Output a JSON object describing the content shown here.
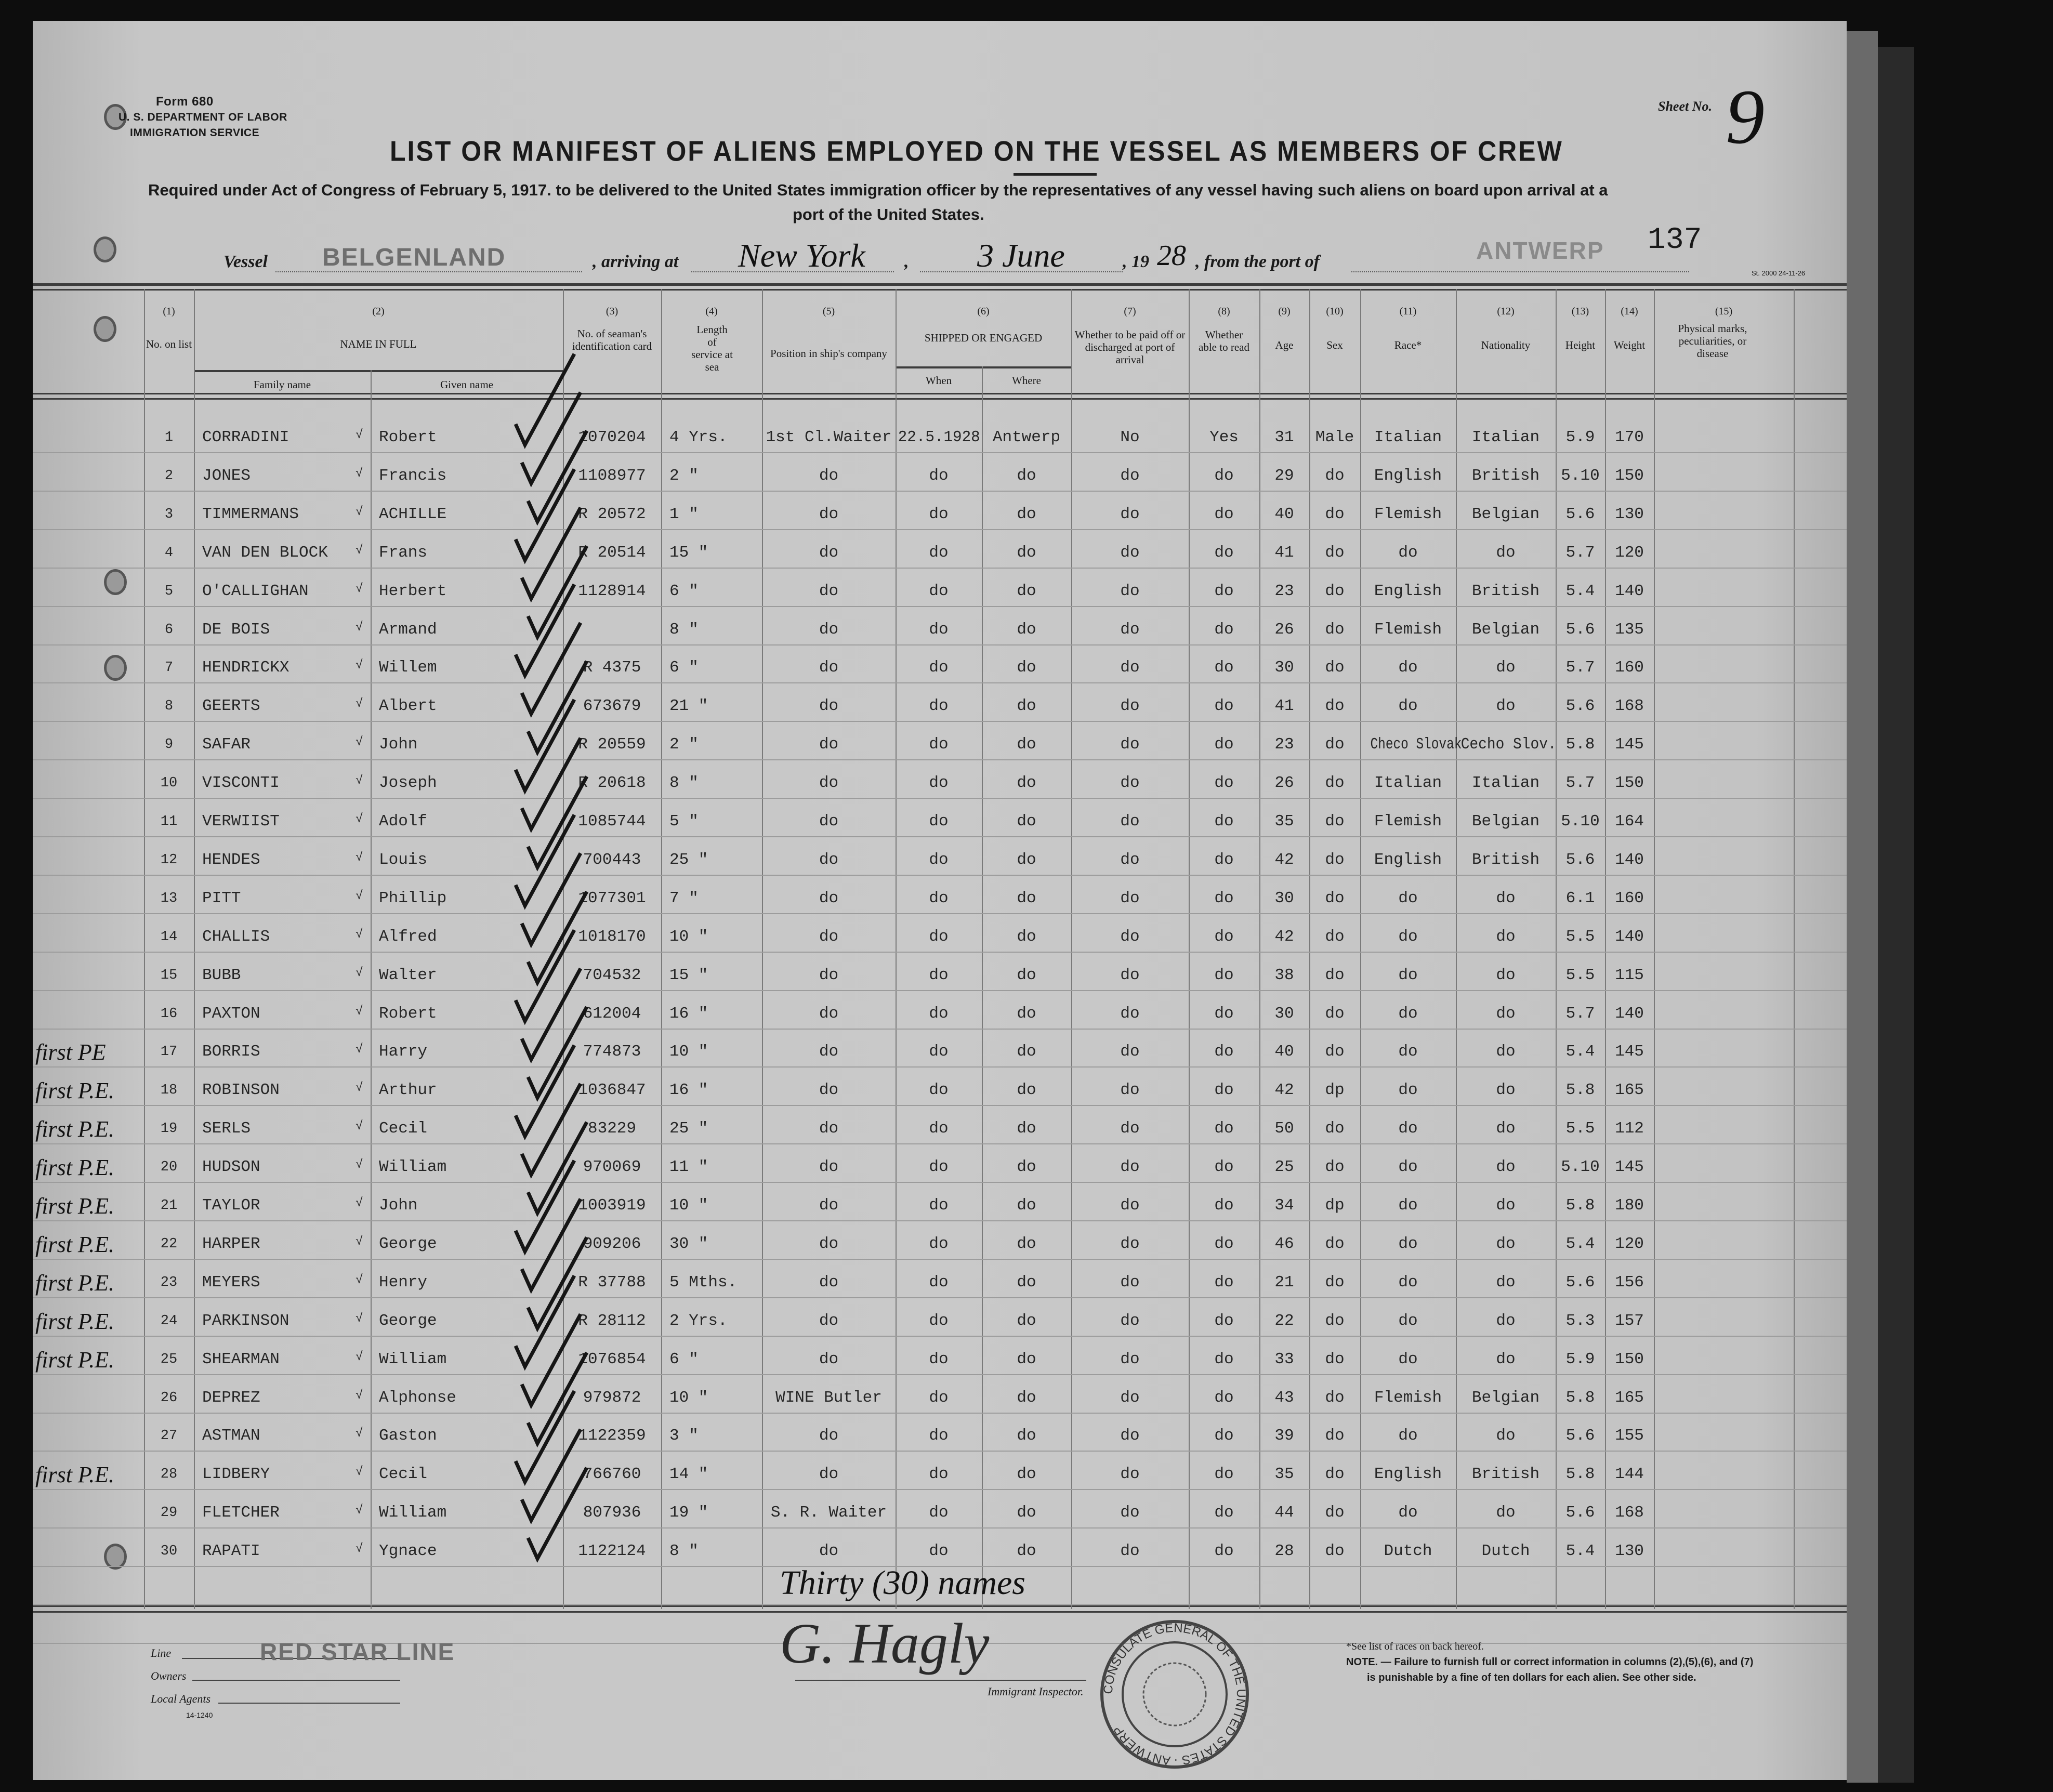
{
  "form": {
    "form_no": "Form 680",
    "department": "U. S. DEPARTMENT OF LABOR",
    "service": "IMMIGRATION SERVICE",
    "sheet_label": "Sheet No.",
    "sheet_no": "9",
    "title": "LIST OR MANIFEST OF ALIENS EMPLOYED ON THE VESSEL AS MEMBERS OF CREW",
    "subtitle_1": "Required under Act of Congress of February 5, 1917. to be delivered to the United States immigration officer by the representatives of any vessel having such aliens on board upon arrival at a",
    "subtitle_2": "port of the United States.",
    "vessel_label": "Vessel",
    "vessel": "BELGENLAND",
    "arriving_label": ", arriving at",
    "arriving_port": "New York",
    "date": "3 June",
    "year_prefix": ", 19",
    "year_suffix": "28",
    "from_label": ", from the port of",
    "from_port": "ANTWERP",
    "page_number": "137",
    "print_code": "St. 2000 24-11-26"
  },
  "columns": {
    "c1_no": "(1)",
    "c1": "No. on list",
    "c2_no": "(2)",
    "c2": "NAME IN FULL",
    "c2a": "Family name",
    "c2b": "Given name",
    "c3_no": "(3)",
    "c3": "No. of seaman's identification card",
    "c4_no": "(4)",
    "c4": "Length of service at sea",
    "c5_no": "(5)",
    "c5": "Position in ship's company",
    "c6_no": "(6)",
    "c6": "SHIPPED OR ENGAGED",
    "c6a": "When",
    "c6b": "Where",
    "c7_no": "(7)",
    "c7": "Whether to be paid off or discharged at port of arrival",
    "c8_no": "(8)",
    "c8": "Whether able to read",
    "c9_no": "(9)",
    "c9": "Age",
    "c10_no": "(10)",
    "c10": "Sex",
    "c11_no": "(11)",
    "c11": "Race*",
    "c12_no": "(12)",
    "c12": "Nationality",
    "c13_no": "(13)",
    "c13": "Height",
    "c14_no": "(14)",
    "c14": "Weight",
    "c15_no": "(15)",
    "c15": "Physical marks, peculiarities, or disease"
  },
  "rows": [
    {
      "no": "1",
      "family": "CORRADINI",
      "given": "Robert",
      "card": "1070204",
      "length": "4 Yrs.",
      "position": "1st Cl.Waiter",
      "when": "22.5.1928",
      "where": "Antwerp",
      "paid_off": "No",
      "read": "Yes",
      "age": "31",
      "sex": "Male",
      "race": "Italian",
      "nationality": "Italian",
      "height": "5.9",
      "weight": "170",
      "annotation": ""
    },
    {
      "no": "2",
      "family": "JONES",
      "given": "Francis",
      "card": "1108977",
      "length": "2 \"",
      "position": "do",
      "when": "do",
      "where": "do",
      "paid_off": "do",
      "read": "do",
      "age": "29",
      "sex": "do",
      "race": "English",
      "nationality": "British",
      "height": "5.10",
      "weight": "150",
      "annotation": ""
    },
    {
      "no": "3",
      "family": "TIMMERMANS",
      "given": "ACHILLE",
      "card": "R 20572",
      "length": "1 \"",
      "position": "do",
      "when": "do",
      "where": "do",
      "paid_off": "do",
      "read": "do",
      "age": "40",
      "sex": "do",
      "race": "Flemish",
      "nationality": "Belgian",
      "height": "5.6",
      "weight": "130",
      "annotation": ""
    },
    {
      "no": "4",
      "family": "VAN DEN BLOCK",
      "given": "Frans",
      "card": "R 20514",
      "length": "15 \"",
      "position": "do",
      "when": "do",
      "where": "do",
      "paid_off": "do",
      "read": "do",
      "age": "41",
      "sex": "do",
      "race": "do",
      "nationality": "do",
      "height": "5.7",
      "weight": "120",
      "annotation": ""
    },
    {
      "no": "5",
      "family": "O'CALLIGHAN",
      "given": "Herbert",
      "card": "1128914",
      "length": "6 \"",
      "position": "do",
      "when": "do",
      "where": "do",
      "paid_off": "do",
      "read": "do",
      "age": "23",
      "sex": "do",
      "race": "English",
      "nationality": "British",
      "height": "5.4",
      "weight": "140",
      "annotation": ""
    },
    {
      "no": "6",
      "family": "DE BOIS",
      "given": "Armand",
      "card": "",
      "length": "8 \"",
      "position": "do",
      "when": "do",
      "where": "do",
      "paid_off": "do",
      "read": "do",
      "age": "26",
      "sex": "do",
      "race": "Flemish",
      "nationality": "Belgian",
      "height": "5.6",
      "weight": "135",
      "annotation": ""
    },
    {
      "no": "7",
      "family": "HENDRICKX",
      "given": "Willem",
      "card": "R 4375",
      "length": "6 \"",
      "position": "do",
      "when": "do",
      "where": "do",
      "paid_off": "do",
      "read": "do",
      "age": "30",
      "sex": "do",
      "race": "do",
      "nationality": "do",
      "height": "5.7",
      "weight": "160",
      "annotation": ""
    },
    {
      "no": "8",
      "family": "GEERTS",
      "given": "Albert",
      "card": "673679",
      "length": "21 \"",
      "position": "do",
      "when": "do",
      "where": "do",
      "paid_off": "do",
      "read": "do",
      "age": "41",
      "sex": "do",
      "race": "do",
      "nationality": "do",
      "height": "5.6",
      "weight": "168",
      "annotation": ""
    },
    {
      "no": "9",
      "family": "SAFAR",
      "given": "John",
      "card": "R 20559",
      "length": "2 \"",
      "position": "do",
      "when": "do",
      "where": "do",
      "paid_off": "do",
      "read": "do",
      "age": "23",
      "sex": "do",
      "race": "Checo Slovak",
      "nationality": "Cecho Slov.",
      "height": "5.8",
      "weight": "145",
      "annotation": ""
    },
    {
      "no": "10",
      "family": "VISCONTI",
      "given": "Joseph",
      "card": "R 20618",
      "length": "8 \"",
      "position": "do",
      "when": "do",
      "where": "do",
      "paid_off": "do",
      "read": "do",
      "age": "26",
      "sex": "do",
      "race": "Italian",
      "nationality": "Italian",
      "height": "5.7",
      "weight": "150",
      "annotation": ""
    },
    {
      "no": "11",
      "family": "VERWIIST",
      "given": "Adolf",
      "card": "1085744",
      "length": "5 \"",
      "position": "do",
      "when": "do",
      "where": "do",
      "paid_off": "do",
      "read": "do",
      "age": "35",
      "sex": "do",
      "race": "Flemish",
      "nationality": "Belgian",
      "height": "5.10",
      "weight": "164",
      "annotation": ""
    },
    {
      "no": "12",
      "family": "HENDES",
      "given": "Louis",
      "card": "700443",
      "length": "25 \"",
      "position": "do",
      "when": "do",
      "where": "do",
      "paid_off": "do",
      "read": "do",
      "age": "42",
      "sex": "do",
      "race": "English",
      "nationality": "British",
      "height": "5.6",
      "weight": "140",
      "annotation": ""
    },
    {
      "no": "13",
      "family": "PITT",
      "given": "Phillip",
      "card": "1077301",
      "length": "7 \"",
      "position": "do",
      "when": "do",
      "where": "do",
      "paid_off": "do",
      "read": "do",
      "age": "30",
      "sex": "do",
      "race": "do",
      "nationality": "do",
      "height": "6.1",
      "weight": "160",
      "annotation": ""
    },
    {
      "no": "14",
      "family": "CHALLIS",
      "given": "Alfred",
      "card": "1018170",
      "length": "10 \"",
      "position": "do",
      "when": "do",
      "where": "do",
      "paid_off": "do",
      "read": "do",
      "age": "42",
      "sex": "do",
      "race": "do",
      "nationality": "do",
      "height": "5.5",
      "weight": "140",
      "annotation": ""
    },
    {
      "no": "15",
      "family": "BUBB",
      "given": "Walter",
      "card": "704532",
      "length": "15 \"",
      "position": "do",
      "when": "do",
      "where": "do",
      "paid_off": "do",
      "read": "do",
      "age": "38",
      "sex": "do",
      "race": "do",
      "nationality": "do",
      "height": "5.5",
      "weight": "115",
      "annotation": ""
    },
    {
      "no": "16",
      "family": "PAXTON",
      "given": "Robert",
      "card": "612004",
      "length": "16 \"",
      "position": "do",
      "when": "do",
      "where": "do",
      "paid_off": "do",
      "read": "do",
      "age": "30",
      "sex": "do",
      "race": "do",
      "nationality": "do",
      "height": "5.7",
      "weight": "140",
      "annotation": ""
    },
    {
      "no": "17",
      "family": "BORRIS",
      "given": "Harry",
      "card": "774873",
      "length": "10 \"",
      "position": "do",
      "when": "do",
      "where": "do",
      "paid_off": "do",
      "read": "do",
      "age": "40",
      "sex": "do",
      "race": "do",
      "nationality": "do",
      "height": "5.4",
      "weight": "145",
      "annotation": "first PE"
    },
    {
      "no": "18",
      "family": "ROBINSON",
      "given": "Arthur",
      "card": "1036847",
      "length": "16 \"",
      "position": "do",
      "when": "do",
      "where": "do",
      "paid_off": "do",
      "read": "do",
      "age": "42",
      "sex": "dp",
      "race": "do",
      "nationality": "do",
      "height": "5.8",
      "weight": "165",
      "annotation": "first P.E."
    },
    {
      "no": "19",
      "family": "SERLS",
      "given": "Cecil",
      "card": "83229",
      "length": "25 \"",
      "position": "do",
      "when": "do",
      "where": "do",
      "paid_off": "do",
      "read": "do",
      "age": "50",
      "sex": "do",
      "race": "do",
      "nationality": "do",
      "height": "5.5",
      "weight": "112",
      "annotation": "first P.E."
    },
    {
      "no": "20",
      "family": "HUDSON",
      "given": "William",
      "card": "970069",
      "length": "11 \"",
      "position": "do",
      "when": "do",
      "where": "do",
      "paid_off": "do",
      "read": "do",
      "age": "25",
      "sex": "do",
      "race": "do",
      "nationality": "do",
      "height": "5.10",
      "weight": "145",
      "annotation": "first P.E."
    },
    {
      "no": "21",
      "family": "TAYLOR",
      "given": "John",
      "card": "1003919",
      "length": "10 \"",
      "position": "do",
      "when": "do",
      "where": "do",
      "paid_off": "do",
      "read": "do",
      "age": "34",
      "sex": "dp",
      "race": "do",
      "nationality": "do",
      "height": "5.8",
      "weight": "180",
      "annotation": "first P.E."
    },
    {
      "no": "22",
      "family": "HARPER",
      "given": "George",
      "card": "909206",
      "length": "30 \"",
      "position": "do",
      "when": "do",
      "where": "do",
      "paid_off": "do",
      "read": "do",
      "age": "46",
      "sex": "do",
      "race": "do",
      "nationality": "do",
      "height": "5.4",
      "weight": "120",
      "annotation": "first P.E."
    },
    {
      "no": "23",
      "family": "MEYERS",
      "given": "Henry",
      "card": "R 37788",
      "length": "5 Mths.",
      "position": "do",
      "when": "do",
      "where": "do",
      "paid_off": "do",
      "read": "do",
      "age": "21",
      "sex": "do",
      "race": "do",
      "nationality": "do",
      "height": "5.6",
      "weight": "156",
      "annotation": "first P.E."
    },
    {
      "no": "24",
      "family": "PARKINSON",
      "given": "George",
      "card": "R 28112",
      "length": "2 Yrs.",
      "position": "do",
      "when": "do",
      "where": "do",
      "paid_off": "do",
      "read": "do",
      "age": "22",
      "sex": "do",
      "race": "do",
      "nationality": "do",
      "height": "5.3",
      "weight": "157",
      "annotation": "first P.E."
    },
    {
      "no": "25",
      "family": "SHEARMAN",
      "given": "William",
      "card": "1076854",
      "length": "6 \"",
      "position": "do",
      "when": "do",
      "where": "do",
      "paid_off": "do",
      "read": "do",
      "age": "33",
      "sex": "do",
      "race": "do",
      "nationality": "do",
      "height": "5.9",
      "weight": "150",
      "annotation": "first P.E."
    },
    {
      "no": "26",
      "family": "DEPREZ",
      "given": "Alphonse",
      "card": "979872",
      "length": "10 \"",
      "position": "WINE Butler",
      "when": "do",
      "where": "do",
      "paid_off": "do",
      "read": "do",
      "age": "43",
      "sex": "do",
      "race": "Flemish",
      "nationality": "Belgian",
      "height": "5.8",
      "weight": "165",
      "annotation": ""
    },
    {
      "no": "27",
      "family": "ASTMAN",
      "given": "Gaston",
      "card": "1122359",
      "length": "3 \"",
      "position": "do",
      "when": "do",
      "where": "do",
      "paid_off": "do",
      "read": "do",
      "age": "39",
      "sex": "do",
      "race": "do",
      "nationality": "do",
      "height": "5.6",
      "weight": "155",
      "annotation": ""
    },
    {
      "no": "28",
      "family": "LIDBERY",
      "given": "Cecil",
      "card": "766760",
      "length": "14 \"",
      "position": "do",
      "when": "do",
      "where": "do",
      "paid_off": "do",
      "read": "do",
      "age": "35",
      "sex": "do",
      "race": "English",
      "nationality": "British",
      "height": "5.8",
      "weight": "144",
      "annotation": "first P.E."
    },
    {
      "no": "29",
      "family": "FLETCHER",
      "given": "William",
      "card": "807936",
      "length": "19 \"",
      "position": "S. R. Waiter",
      "when": "do",
      "where": "do",
      "paid_off": "do",
      "read": "do",
      "age": "44",
      "sex": "do",
      "race": "do",
      "nationality": "do",
      "height": "5.6",
      "weight": "168",
      "annotation": ""
    },
    {
      "no": "30",
      "family": "RAPATI",
      "given": "Ygnace",
      "card": "1122124",
      "length": "8 \"",
      "position": "do",
      "when": "do",
      "where": "do",
      "paid_off": "do",
      "read": "do",
      "age": "28",
      "sex": "do",
      "race": "Dutch",
      "nationality": "Dutch",
      "height": "5.4",
      "weight": "130",
      "annotation": ""
    }
  ],
  "footer": {
    "names_count": "Thirty (30) names",
    "signature": "G. Hagly",
    "inspector_label": "Immigrant Inspector.",
    "line_label": "Line",
    "line_value": "RED STAR LINE",
    "owners_label": "Owners",
    "agents_label": "Local Agents",
    "form_code": "14-1240",
    "races_note": "*See list of races on back hereof.",
    "note_1": "NOTE. — Failure to furnish full or correct information in columns (2),(5),(6), and (7)",
    "note_2": "is punishable by a fine of ten dollars for each alien.   See other side.",
    "seal_text": "CONSULATE GENERAL OF THE UNITED STATES · ANTWERP"
  },
  "colors": {
    "paper": "#c6c6c6",
    "ink": "#1a1a1a",
    "background": "#0d0d0d"
  }
}
